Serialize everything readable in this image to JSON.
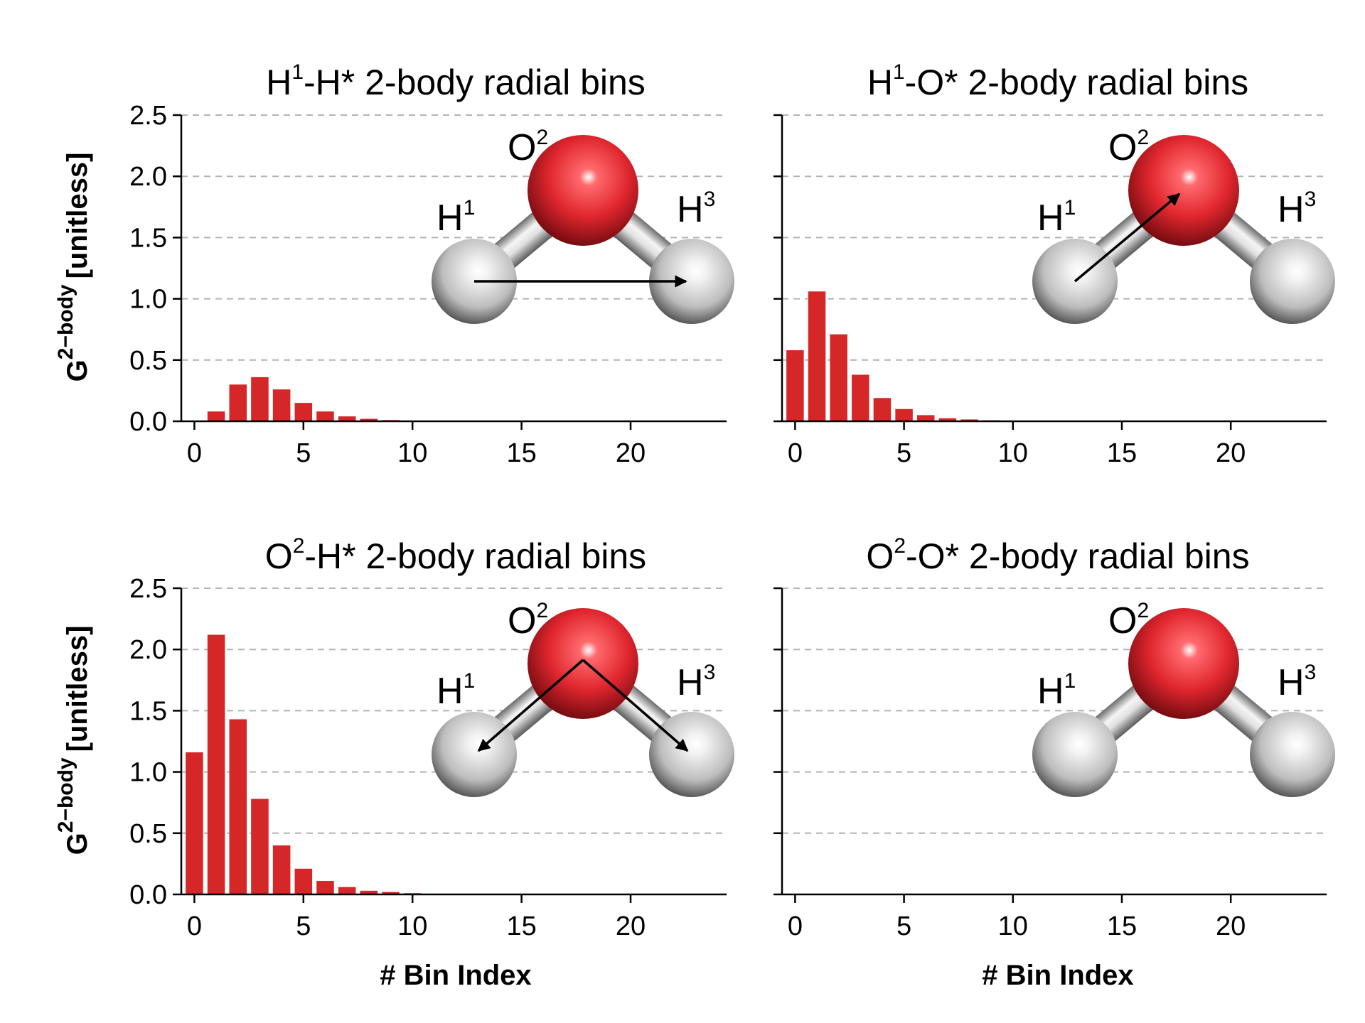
{
  "colors": {
    "bar": "#d62728",
    "oxygen": "#e8333a",
    "hydrogen": "#d9d9d9",
    "grid": "#b3b3b3"
  },
  "shared": {
    "ylabel_main": "G",
    "ylabel_sup": "2−body",
    "ylabel_unit": "[unitless]",
    "xlabel": "# Bin Index"
  },
  "molecule_labels": {
    "o": "O",
    "o_sup": "2",
    "h1": "H",
    "h1_sup": "1",
    "h3": "H",
    "h3_sup": "3"
  },
  "chart_data": [
    {
      "type": "bar",
      "title_a": "H",
      "title_sup": "1",
      "title_b": "-H* 2-body radial bins",
      "x": [
        0,
        1,
        2,
        3,
        4,
        5,
        6,
        7,
        8,
        9,
        10,
        11,
        12,
        13,
        14,
        15,
        16,
        17,
        18,
        19,
        20,
        21,
        22,
        23
      ],
      "values": [
        0.0,
        0.08,
        0.3,
        0.36,
        0.26,
        0.15,
        0.08,
        0.04,
        0.02,
        0.01,
        0.005,
        0,
        0,
        0,
        0,
        0,
        0,
        0,
        0,
        0,
        0,
        0,
        0,
        0
      ],
      "ylim": [
        0,
        2.5
      ],
      "xlim": [
        -0.6,
        24.4
      ],
      "xticks": [
        0,
        5,
        10,
        15,
        20
      ],
      "yticks": [
        0.0,
        0.5,
        1.0,
        1.5,
        2.0,
        2.5
      ],
      "ytick_labels": [
        "0.0",
        "0.5",
        "1.0",
        "1.5",
        "2.0",
        "2.5"
      ],
      "grid": "y-dashed",
      "arrows": [
        "H1->H3"
      ]
    },
    {
      "type": "bar",
      "title_a": "H",
      "title_sup": "1",
      "title_b": "-O* 2-body radial bins",
      "x": [
        0,
        1,
        2,
        3,
        4,
        5,
        6,
        7,
        8,
        9,
        10,
        11,
        12,
        13,
        14,
        15,
        16,
        17,
        18,
        19,
        20,
        21,
        22,
        23
      ],
      "values": [
        0.58,
        1.06,
        0.71,
        0.38,
        0.19,
        0.1,
        0.05,
        0.025,
        0.015,
        0.008,
        0.004,
        0.002,
        0,
        0,
        0,
        0,
        0,
        0,
        0,
        0,
        0,
        0,
        0,
        0
      ],
      "ylim": [
        0,
        2.5
      ],
      "xlim": [
        -0.6,
        24.4
      ],
      "xticks": [
        0,
        5,
        10,
        15,
        20
      ],
      "yticks": [
        0.0,
        0.5,
        1.0,
        1.5,
        2.0,
        2.5
      ],
      "ytick_labels": [],
      "grid": "y-dashed",
      "arrows": [
        "H1->O2"
      ]
    },
    {
      "type": "bar",
      "title_a": "O",
      "title_sup": "2",
      "title_b": "-H* 2-body radial bins",
      "x": [
        0,
        1,
        2,
        3,
        4,
        5,
        6,
        7,
        8,
        9,
        10,
        11,
        12,
        13,
        14,
        15,
        16,
        17,
        18,
        19,
        20,
        21,
        22,
        23
      ],
      "values": [
        1.16,
        2.12,
        1.43,
        0.78,
        0.4,
        0.21,
        0.11,
        0.06,
        0.03,
        0.02,
        0.01,
        0.005,
        0,
        0,
        0,
        0,
        0,
        0,
        0,
        0,
        0,
        0,
        0,
        0
      ],
      "ylim": [
        0,
        2.5
      ],
      "xlim": [
        -0.6,
        24.4
      ],
      "xticks": [
        0,
        5,
        10,
        15,
        20
      ],
      "yticks": [
        0.0,
        0.5,
        1.0,
        1.5,
        2.0,
        2.5
      ],
      "ytick_labels": [
        "0.0",
        "0.5",
        "1.0",
        "1.5",
        "2.0",
        "2.5"
      ],
      "grid": "y-dashed",
      "arrows": [
        "O2->H1",
        "O2->H3"
      ]
    },
    {
      "type": "bar",
      "title_a": "O",
      "title_sup": "2",
      "title_b": "-O* 2-body radial bins",
      "x": [
        0,
        1,
        2,
        3,
        4,
        5,
        6,
        7,
        8,
        9,
        10,
        11,
        12,
        13,
        14,
        15,
        16,
        17,
        18,
        19,
        20,
        21,
        22,
        23
      ],
      "values": [
        0,
        0,
        0,
        0,
        0,
        0,
        0,
        0,
        0,
        0,
        0,
        0,
        0,
        0,
        0,
        0,
        0,
        0,
        0,
        0,
        0,
        0,
        0,
        0
      ],
      "ylim": [
        0,
        2.5
      ],
      "xlim": [
        -0.6,
        24.4
      ],
      "xticks": [
        0,
        5,
        10,
        15,
        20
      ],
      "yticks": [
        0.0,
        0.5,
        1.0,
        1.5,
        2.0,
        2.5
      ],
      "ytick_labels": [],
      "grid": "y-dashed",
      "arrows": []
    }
  ]
}
